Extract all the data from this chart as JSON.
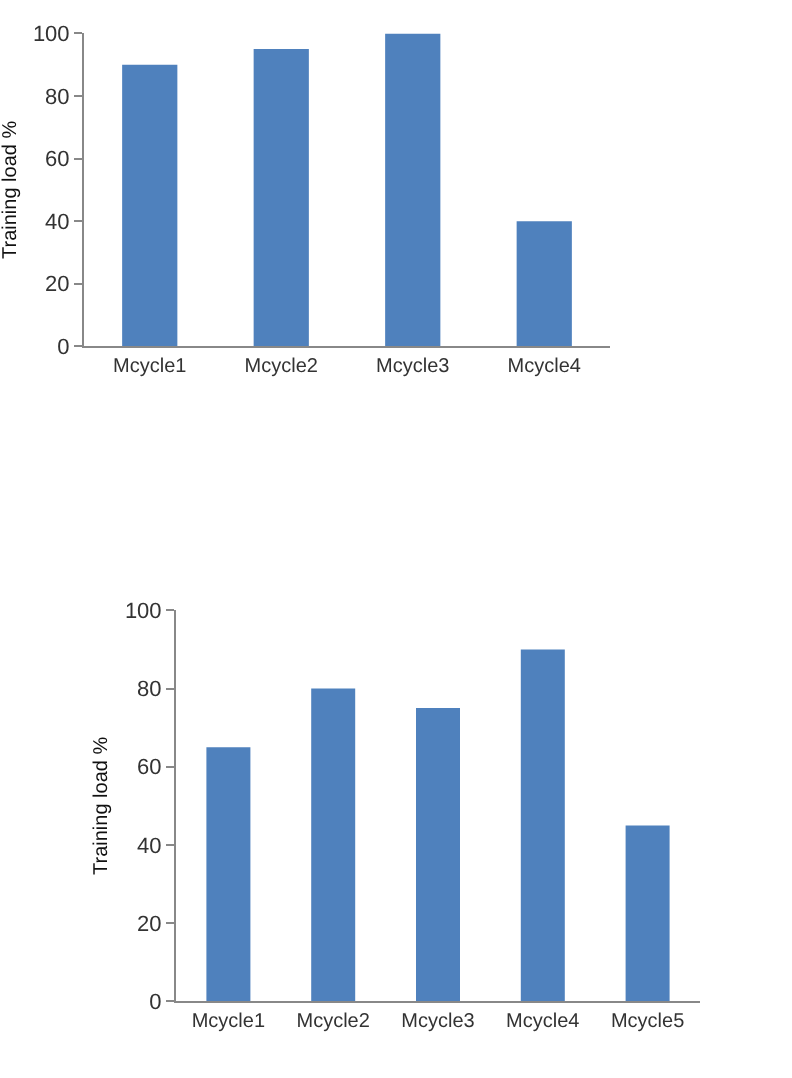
{
  "chart_data": [
    {
      "type": "bar",
      "ylabel": "Training load %",
      "categories": [
        "Mcycle1",
        "Mcycle2",
        "Mcycle3",
        "Mcycle4"
      ],
      "values": [
        90,
        95,
        100,
        40
      ],
      "color": "#4f81bd",
      "ylim": [
        0,
        100
      ],
      "yticks": [
        0,
        20,
        40,
        60,
        80,
        100
      ],
      "grid": false
    },
    {
      "type": "bar",
      "ylabel": "Training load %",
      "categories": [
        "Mcycle1",
        "Mcycle2",
        "Mcycle3",
        "Mcycle4",
        "Mcycle5"
      ],
      "values": [
        65,
        80,
        75,
        90,
        45
      ],
      "color": "#4f81bd",
      "ylim": [
        0,
        100
      ],
      "yticks": [
        0,
        20,
        40,
        60,
        80,
        100
      ],
      "grid": false
    }
  ]
}
